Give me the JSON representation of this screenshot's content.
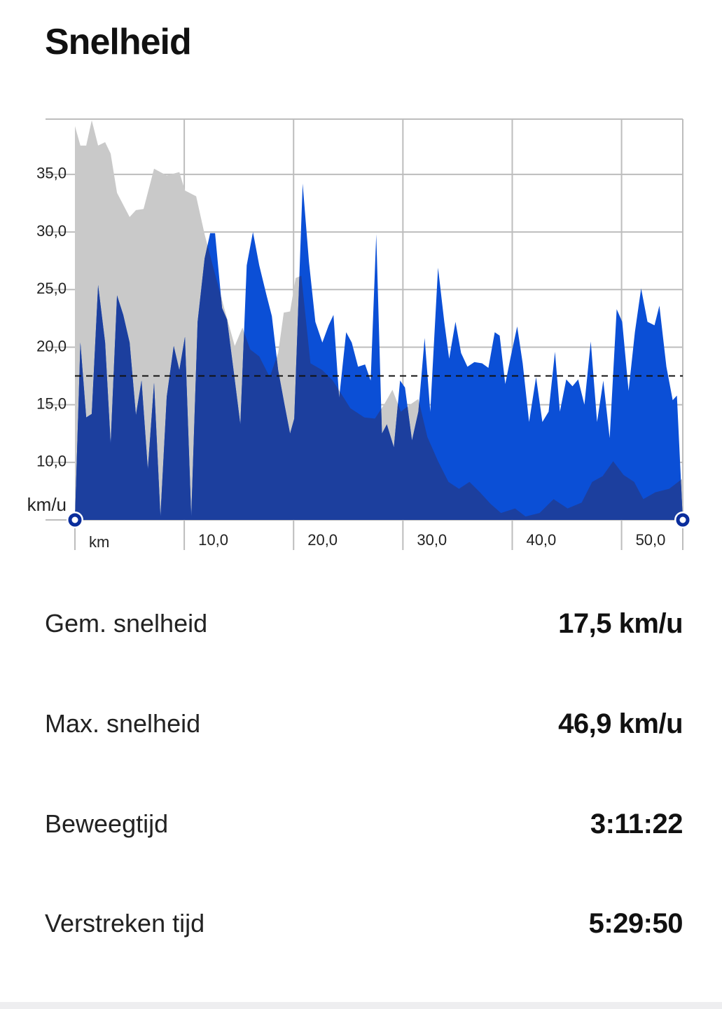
{
  "title": "Snelheid",
  "chart_data": {
    "type": "area",
    "xlabel": "km",
    "ylabel": "km/u",
    "xlim": [
      0,
      55.6
    ],
    "ylim": [
      5,
      39.8
    ],
    "xticks": [
      {
        "value": 10,
        "label": "10,0"
      },
      {
        "value": 20,
        "label": "20,0"
      },
      {
        "value": 30,
        "label": "30,0"
      },
      {
        "value": 40,
        "label": "40,0"
      },
      {
        "value": 50,
        "label": "50,0"
      }
    ],
    "yticks": [
      {
        "value": 10,
        "label": "10,0"
      },
      {
        "value": 15,
        "label": "15,0"
      },
      {
        "value": 20,
        "label": "20,0"
      },
      {
        "value": 25,
        "label": "25,0"
      },
      {
        "value": 30,
        "label": "30,0"
      },
      {
        "value": 35,
        "label": "35,0"
      }
    ],
    "grid": true,
    "average": 17.5,
    "overlap_color": "#1c3f9e",
    "series": [
      {
        "color": "#c9c9c9",
        "x": [
          0,
          0.5,
          1.03,
          1.54,
          2.12,
          2.76,
          3.27,
          3.85,
          5.0,
          5.58,
          6.28,
          7.24,
          8.4,
          9.55,
          10.06,
          11.09,
          11.86,
          12.69,
          13.65,
          14.62,
          15.32,
          16.03,
          16.86,
          17.82,
          18.59,
          19.1,
          19.68,
          20.19,
          20.71,
          21.54,
          22.63,
          23.59,
          25.19,
          26.47,
          27.44,
          28.27,
          29.04,
          29.81,
          30.64,
          31.41,
          32.24,
          33.21,
          34.17,
          35.13,
          36.09,
          37.05,
          38.01,
          38.97,
          40.26,
          41.22,
          42.5,
          43.78,
          45.06,
          46.35,
          47.31,
          48.27,
          49.23,
          50.19,
          51.15,
          51.99,
          53.08,
          54.36,
          55.6
        ],
        "values": [
          39.2,
          37.5,
          37.5,
          39.7,
          37.5,
          37.8,
          36.8,
          33.4,
          31.3,
          31.9,
          32.0,
          35.5,
          34.9,
          35.2,
          33.6,
          33.1,
          29.8,
          26.8,
          23.4,
          20.1,
          21.7,
          19.8,
          19.2,
          17.4,
          19.5,
          23.0,
          23.1,
          26.0,
          26.2,
          18.6,
          18.0,
          17.1,
          14.7,
          13.9,
          13.8,
          15.0,
          16.3,
          14.4,
          15.0,
          15.5,
          12.2,
          10.1,
          8.3,
          7.7,
          8.3,
          7.4,
          6.4,
          5.6,
          6.0,
          5.3,
          5.6,
          6.8,
          6.0,
          6.5,
          8.3,
          8.8,
          10.1,
          8.9,
          8.3,
          6.8,
          7.4,
          7.7,
          8.6
        ]
      },
      {
        "color": "#0b4fd6",
        "x": [
          0,
          0.5,
          1.03,
          1.54,
          2.12,
          2.76,
          3.27,
          3.85,
          4.42,
          5.0,
          5.58,
          6.09,
          6.67,
          7.24,
          7.82,
          8.4,
          9.04,
          9.55,
          10.06,
          10.64,
          11.22,
          11.86,
          12.37,
          12.82,
          13.46,
          13.91,
          14.55,
          15.13,
          15.71,
          16.28,
          16.86,
          17.5,
          18.01,
          18.59,
          19.17,
          19.68,
          20.06,
          20.83,
          21.41,
          21.99,
          22.63,
          23.21,
          23.65,
          24.17,
          24.81,
          25.32,
          25.9,
          26.54,
          27.05,
          27.56,
          28.08,
          28.53,
          29.17,
          29.74,
          30.19,
          30.83,
          31.41,
          31.99,
          32.5,
          33.21,
          33.78,
          34.23,
          34.81,
          35.32,
          35.9,
          36.54,
          37.24,
          37.82,
          38.4,
          38.85,
          39.36,
          39.87,
          40.45,
          40.96,
          41.54,
          42.18,
          42.76,
          43.33,
          43.91,
          44.36,
          44.94,
          45.51,
          46.03,
          46.6,
          47.18,
          47.76,
          48.33,
          48.91,
          49.55,
          50.06,
          50.64,
          51.22,
          51.79,
          52.37,
          53.01,
          53.46,
          54.1,
          54.68,
          55.06,
          55.6
        ],
        "values": [
          5.0,
          20.4,
          13.9,
          14.2,
          25.4,
          20.4,
          11.6,
          24.5,
          22.8,
          20.4,
          14.1,
          17.1,
          9.4,
          16.9,
          5.3,
          15.7,
          20.1,
          18.0,
          20.9,
          5.3,
          22.2,
          27.7,
          29.9,
          29.9,
          23.4,
          22.4,
          17.7,
          13.3,
          27.1,
          30.0,
          27.1,
          24.6,
          22.7,
          18.0,
          15.0,
          12.5,
          13.8,
          34.2,
          27.4,
          22.2,
          20.4,
          21.9,
          22.8,
          15.6,
          21.3,
          20.4,
          18.3,
          18.5,
          17.1,
          29.8,
          12.5,
          13.3,
          11.3,
          17.1,
          16.5,
          11.9,
          14.4,
          20.8,
          14.4,
          26.9,
          22.2,
          19.0,
          22.2,
          19.5,
          18.3,
          18.7,
          18.6,
          18.2,
          21.3,
          21.0,
          16.8,
          19.2,
          21.8,
          18.6,
          13.5,
          17.4,
          13.5,
          14.4,
          19.6,
          14.4,
          17.2,
          16.6,
          17.2,
          15.0,
          20.5,
          13.5,
          17.1,
          12.1,
          23.3,
          22.2,
          16.2,
          21.3,
          25.1,
          22.2,
          21.9,
          23.6,
          18.3,
          15.4,
          15.8,
          5.0
        ]
      }
    ]
  },
  "stats": [
    {
      "label": "Gem. snelheid",
      "value": "17,5 km/u"
    },
    {
      "label": "Max. snelheid",
      "value": "46,9 km/u"
    },
    {
      "label": "Beweegtijd",
      "value": "3:11:22"
    },
    {
      "label": "Verstreken tijd",
      "value": "5:29:50"
    }
  ]
}
